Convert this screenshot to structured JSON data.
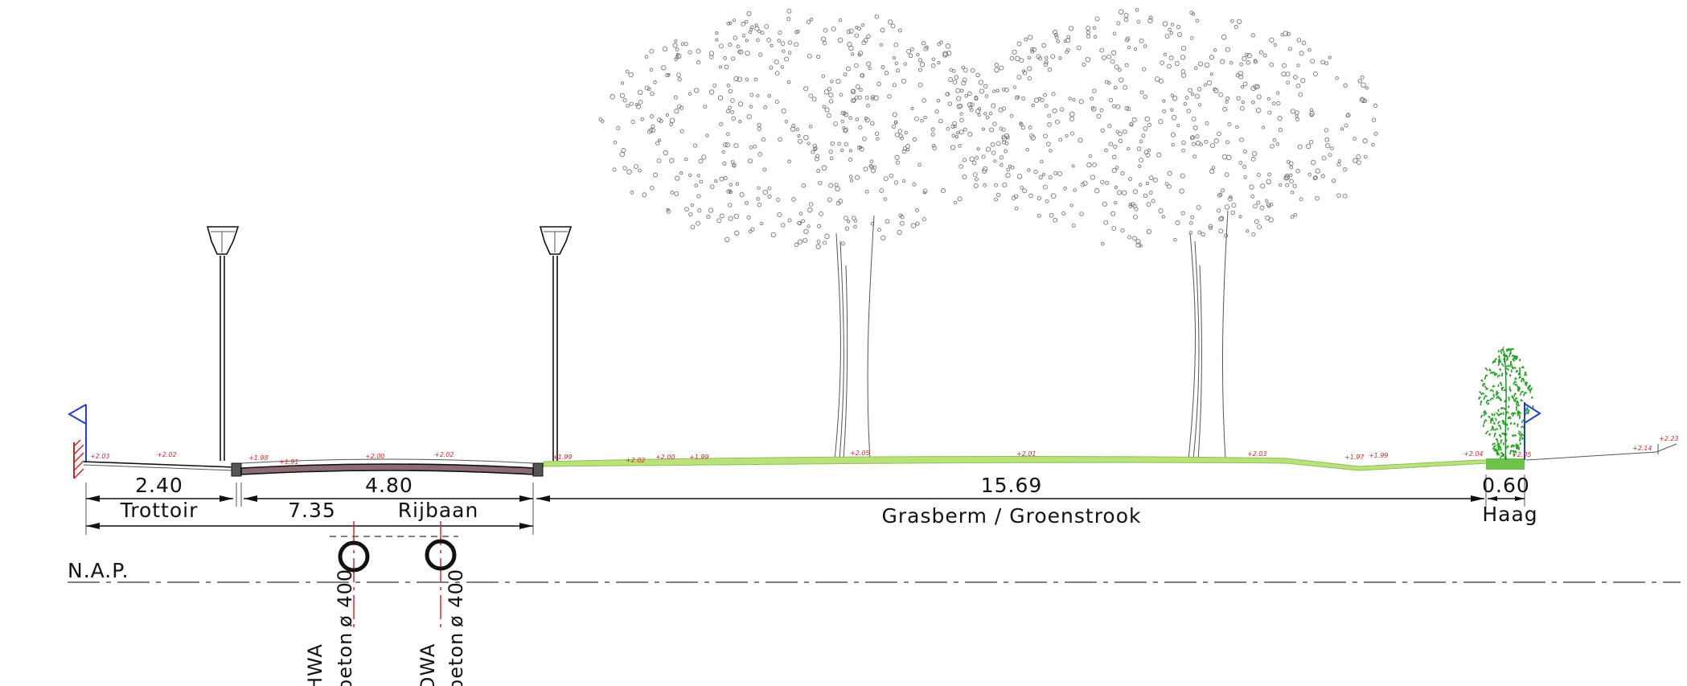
{
  "dimensions": {
    "trottoir_width": "2.40",
    "rijbaan_width": "4.80",
    "total_paved_width": "7.35",
    "grasberm_width": "15.69",
    "haag_width": "0.60"
  },
  "labels": {
    "trottoir": "Trottoir",
    "rijbaan": "Rijbaan",
    "grasberm": "Grasberm / Groenstrook",
    "haag": "Haag",
    "nap": "N.A.P."
  },
  "pipes": [
    {
      "system": "HWA",
      "material": "beton",
      "diameter": "ø 400"
    },
    {
      "system": "DWA",
      "material": "beton",
      "diameter": "ø 400"
    }
  ],
  "spot_levels": [
    "+2.03",
    "+2.02",
    "+1.98",
    "+1.91",
    "+2.00",
    "+2.02",
    "+1.99",
    "+2.02",
    "+2.00",
    "+1.99",
    "+2.05",
    "+2.01",
    "+2.03",
    "+1.97",
    "+1.99",
    "+2.04",
    "+2.05",
    "+2.14",
    "+2.23"
  ],
  "colors": {
    "grass": "#b9e37a",
    "hedge": "#1fa31f",
    "hedge_base": "#6cc24a",
    "road": "#8c6b72",
    "level_text": "#e0262a",
    "pipe_axis": "#e0262a",
    "boundary_marker": "#1f3fd8",
    "property_hatch": "#d62020"
  },
  "icons": [
    "street-lamp-icon",
    "tree-icon",
    "hedge-icon",
    "boundary-marker-icon"
  ]
}
